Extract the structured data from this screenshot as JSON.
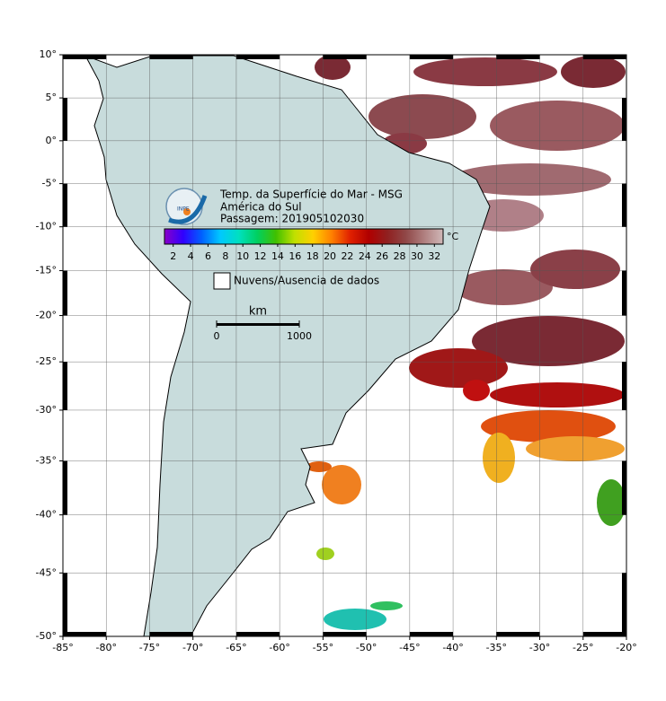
{
  "map": {
    "title_lines": [
      "Temp. da Superfície do Mar - MSG",
      "América do Sul",
      "Passagem: 201905102030"
    ],
    "logo_text": "INPE",
    "projection": "mercator",
    "lon_lim": [
      -85,
      -20
    ],
    "lat_lim": [
      -50,
      10
    ],
    "grid": true,
    "lon_ticks": [
      {
        "value": -85,
        "label": "-85°"
      },
      {
        "value": -80,
        "label": "-80°"
      },
      {
        "value": -75,
        "label": "-75°"
      },
      {
        "value": -70,
        "label": "-70°"
      },
      {
        "value": -65,
        "label": "-65°"
      },
      {
        "value": -60,
        "label": "-60°"
      },
      {
        "value": -55,
        "label": "-55°"
      },
      {
        "value": -50,
        "label": "-50°"
      },
      {
        "value": -45,
        "label": "-45°"
      },
      {
        "value": -40,
        "label": "-40°"
      },
      {
        "value": -35,
        "label": "-35°"
      },
      {
        "value": -30,
        "label": "-30°"
      },
      {
        "value": -25,
        "label": "-25°"
      },
      {
        "value": -20,
        "label": "-20°"
      }
    ],
    "lat_ticks": [
      {
        "value": 10,
        "label": "10°"
      },
      {
        "value": 5,
        "label": "5°"
      },
      {
        "value": 0,
        "label": "0°"
      },
      {
        "value": -5,
        "label": "-5°"
      },
      {
        "value": -10,
        "label": "-10°"
      },
      {
        "value": -15,
        "label": "-15°"
      },
      {
        "value": -20,
        "label": "-20°"
      },
      {
        "value": -25,
        "label": "-25°"
      },
      {
        "value": -30,
        "label": "-30°"
      },
      {
        "value": -35,
        "label": "-35°"
      },
      {
        "value": -40,
        "label": "-40°"
      },
      {
        "value": -45,
        "label": "-45°"
      },
      {
        "value": -50,
        "label": "-50°"
      }
    ],
    "colorbar": {
      "lim": [
        1,
        33
      ],
      "ticks": [
        2,
        4,
        6,
        8,
        10,
        12,
        14,
        16,
        18,
        20,
        22,
        24,
        26,
        28,
        30,
        32
      ],
      "unit": "°C",
      "colors": [
        "#8a00c8",
        "#3000ff",
        "#0060ff",
        "#00c8ff",
        "#00e0c0",
        "#00d060",
        "#40c000",
        "#c0e000",
        "#ffd000",
        "#ff8000",
        "#e02000",
        "#b00000",
        "#902020",
        "#904848",
        "#b08080",
        "#d0b8b8"
      ]
    },
    "legend": "Nuvens/Ausencia de dados",
    "scale_bar": {
      "unit": "km",
      "ticks": [
        0,
        1000
      ]
    }
  }
}
